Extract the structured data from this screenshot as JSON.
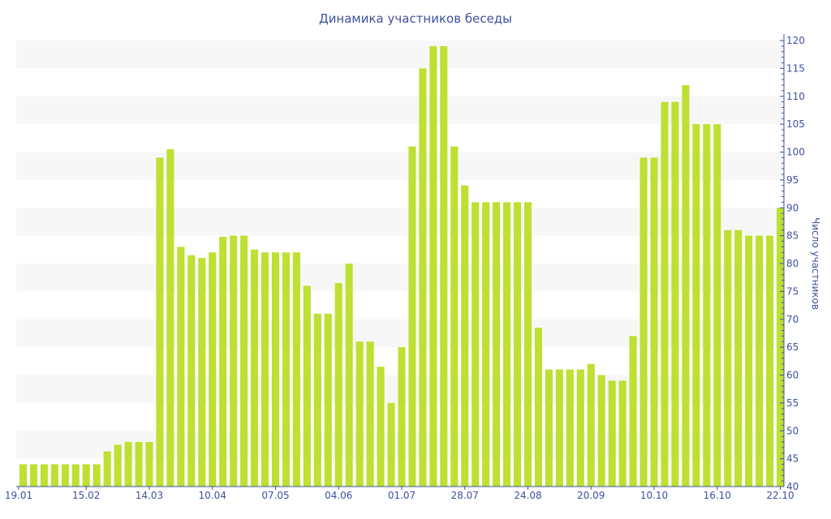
{
  "chart_data": {
    "type": "bar",
    "title": "Динамика участников беседы",
    "ylabel": "Число участников",
    "xlabel": "",
    "ylim": [
      40,
      120
    ],
    "ytick_step": 5,
    "y_axis_position": "right",
    "grid": "alternating horizontal bands",
    "x_tick_labels": [
      "19.01",
      "15.02",
      "14.03",
      "10.04",
      "07.05",
      "04.06",
      "01.07",
      "28.07",
      "24.08",
      "20.09",
      "10.10",
      "16.10",
      "22.10"
    ],
    "x_tick_every": 6,
    "values": [
      44,
      44,
      44,
      44,
      44,
      44,
      44,
      44,
      46.3,
      47.5,
      48,
      48,
      48,
      99,
      100.5,
      83,
      81.5,
      81,
      82,
      84.8,
      85,
      85,
      82.5,
      82,
      82,
      82,
      82,
      76,
      71,
      71,
      76.5,
      80,
      66,
      66,
      61.5,
      55,
      65,
      101,
      115,
      119,
      119,
      101,
      94,
      91,
      91,
      91,
      91,
      91,
      91,
      68.5,
      61,
      61,
      61,
      61,
      62,
      60,
      59,
      59,
      67,
      99,
      99,
      109,
      109,
      112,
      105,
      105,
      105,
      86,
      86,
      85,
      85,
      85,
      90
    ],
    "colors": {
      "bar": "#bde032",
      "axis": "#3f51a0",
      "band": "#f7f7f7"
    }
  }
}
